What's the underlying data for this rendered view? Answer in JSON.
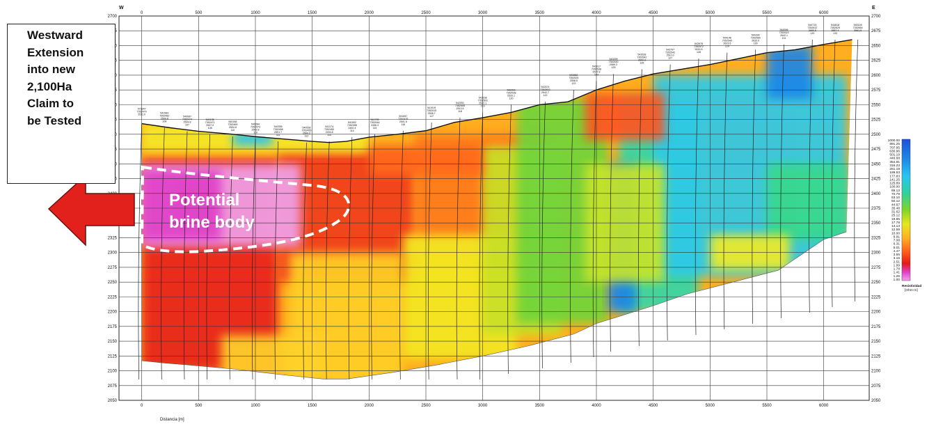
{
  "chart_data": {
    "type": "heatmap",
    "title": "",
    "xlabel": "Distancia [m]",
    "ylabel": "",
    "orientation": {
      "left": "W",
      "right": "E"
    },
    "xlim": [
      -200,
      6400
    ],
    "ylim": [
      2050,
      2700
    ],
    "x_ticks": [
      "0",
      "500",
      "1000",
      "1500",
      "2000",
      "2500",
      "3000",
      "3500",
      "4000",
      "4500",
      "5000",
      "5500",
      "6000"
    ],
    "y_ticks": [
      "2700",
      "2675",
      "2650",
      "2625",
      "2600",
      "2575",
      "2550",
      "2525",
      "2500",
      "2475",
      "2450",
      "2425",
      "2400",
      "2375",
      "2350",
      "2325",
      "2300",
      "2275",
      "2250",
      "2225",
      "2200",
      "2175",
      "2150",
      "2125",
      "2100",
      "2075",
      "2050"
    ],
    "grid": true,
    "colorbar": {
      "title": "Resistividad",
      "unit": "[Ohm-m]",
      "scale": "log",
      "labels": [
        "1000.00",
        "891.25",
        "707.95",
        "630.96",
        "501.19",
        "446.68",
        "354.81",
        "316.23",
        "251.19",
        "199.53",
        "177.83",
        "141.25",
        "125.89",
        "100.00",
        "89.13",
        "70.79",
        "63.10",
        "50.12",
        "44.67",
        "35.48",
        "31.62",
        "25.12",
        "19.95",
        "17.78",
        "14.13",
        "12.59",
        "10.00",
        "8.91",
        "7.08",
        "6.31",
        "5.01",
        "4.47",
        "3.55",
        "3.16",
        "2.51",
        "1.99",
        "1.78",
        "1.41",
        "1.26",
        "1.00"
      ]
    },
    "topography": {
      "x": [
        0,
        250,
        500,
        800,
        1000,
        1250,
        1500,
        1650,
        1800,
        2000,
        2250,
        2500,
        2750,
        3000,
        3250,
        3500,
        3750,
        4000,
        4250,
        4500,
        4750,
        5000,
        5250,
        5500,
        5750,
        6000,
        6250
      ],
      "elevation": [
        2518,
        2511,
        2505,
        2500,
        2496,
        2492,
        2488,
        2486,
        2488,
        2495,
        2500,
        2506,
        2520,
        2528,
        2537,
        2550,
        2555,
        2575,
        2590,
        2602,
        2610,
        2618,
        2628,
        2638,
        2643,
        2652,
        2660
      ]
    },
    "bottom_profile": {
      "x": [
        0,
        200,
        400,
        800,
        1200,
        1600,
        1800,
        2200,
        2600,
        3000,
        3400,
        3800,
        4000,
        4200,
        4500,
        4800,
        5200,
        5600,
        6000,
        6200
      ],
      "elevation": [
        2117,
        2113,
        2110,
        2103,
        2094,
        2086,
        2086,
        2097,
        2110,
        2125,
        2142,
        2162,
        2180,
        2192,
        2210,
        2230,
        2250,
        2270,
        2322,
        2335
      ]
    },
    "stations": [
      {
        "x": 0,
        "label": "579347\n7352479\n2511.0"
      },
      {
        "x": 200,
        "label": "541583\n7352482\n2509.8\n108"
      },
      {
        "x": 400,
        "label": "540087\n7352474\n2509.8\n107"
      },
      {
        "x": 600,
        "label": "540135\n7352471\n2507.0\n108"
      },
      {
        "x": 800,
        "label": "540158\n7352469\n2504.8\n110"
      },
      {
        "x": 1000,
        "label": "540284\n7352473\n2503.8\n110"
      },
      {
        "x": 1200,
        "label": "540395\n7352458\n2501.7\n111"
      },
      {
        "x": 1450,
        "label": "540538\n7352455\n2500.2\n112"
      },
      {
        "x": 1650,
        "label": "541174\n7352450\n2494.8\n113"
      },
      {
        "x": 1850,
        "label": "541592\n7352456\n2492.4\n114"
      },
      {
        "x": 2050,
        "label": "541795\n7352446\n2496.3\n115"
      },
      {
        "x": 2300,
        "label": "541847\n7352478\n2501.5\n116"
      },
      {
        "x": 2550,
        "label": "541919\n7352515\n2508.7\n117"
      },
      {
        "x": 2800,
        "label": "542051\n7352505\n2513.5\n118"
      },
      {
        "x": 3000,
        "label": "542168\n7352503\n2522.1\n119"
      },
      {
        "x": 3250,
        "label": "542393\n7352538\n2533.1\n120"
      },
      {
        "x": 3550,
        "label": "542574\n7352502\n2542.7\n122"
      },
      {
        "x": 3800,
        "label": "542662\n7352525\n2558.5\n123"
      },
      {
        "x": 4000,
        "label": "543017\n7352538\n2577.8\n124"
      },
      {
        "x": 4150,
        "label": "543299\n7352530\n2589.3\n125"
      },
      {
        "x": 4400,
        "label": "543528\n7352542\n2602.3\n126"
      },
      {
        "x": 4650,
        "label": "543797\n7352542\n2610.0\n127"
      },
      {
        "x": 4900,
        "label": "543978\n7352572\n2615.5\n128"
      },
      {
        "x": 5150,
        "label": "544146\n7352540\n2623.6\n129"
      },
      {
        "x": 5400,
        "label": "544394\n7352565\n2633.0\n130"
      },
      {
        "x": 5650,
        "label": "544596\n7352619\n2642.1\n131"
      },
      {
        "x": 5900,
        "label": "544715\n7352612\n2650.5\n132"
      },
      {
        "x": 6100,
        "label": "544818\n7352629\n2657.4\n133"
      },
      {
        "x": 6300,
        "label": "545145\n7352664\n2661.5"
      }
    ],
    "annotations": [
      {
        "text": "Potential brine body",
        "x_range": [
          0,
          1800
        ],
        "y_range": [
          2305,
          2455
        ],
        "style": "dashed-outline"
      }
    ]
  },
  "callout": {
    "lines": [
      "Westward",
      "Extension",
      "into new",
      "2,100Ha",
      "Claim to",
      "be Tested"
    ]
  },
  "brine": {
    "line1": "Potential",
    "line2": "brine body"
  },
  "colors": {
    "arrow": "#e3211c",
    "frame": "#222222",
    "grid": "#333333"
  }
}
